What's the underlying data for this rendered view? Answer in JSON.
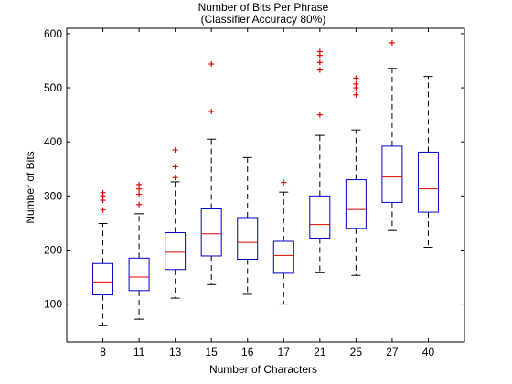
{
  "chart_data": {
    "type": "boxplot",
    "title": "Number of Bits Per Phrase",
    "subtitle": "(Classifier Accuracy 80%)",
    "xlabel": "Number of Characters",
    "ylabel": "Number of Bits",
    "ylim": [
      30,
      610
    ],
    "yticks": [
      100,
      200,
      300,
      400,
      500,
      600
    ],
    "grid": false,
    "colors": {
      "box": "#0000cc",
      "median": "#dd0000",
      "whisker": "#000000",
      "outlier": "#ee0000"
    },
    "categories": [
      "8",
      "11",
      "13",
      "15",
      "16",
      "17",
      "21",
      "25",
      "27",
      "40"
    ],
    "boxes": [
      {
        "category": "8",
        "whisker_low": 60,
        "q1": 117,
        "median": 141,
        "q3": 175,
        "whisker_high": 249,
        "outliers": [
          274,
          292,
          300,
          306
        ]
      },
      {
        "category": "11",
        "whisker_low": 72,
        "q1": 125,
        "median": 150,
        "q3": 185,
        "whisker_high": 267,
        "outliers": [
          284,
          303,
          313,
          321
        ]
      },
      {
        "category": "13",
        "whisker_low": 111,
        "q1": 164,
        "median": 196,
        "q3": 232,
        "whisker_high": 326,
        "outliers": [
          334,
          354,
          385
        ]
      },
      {
        "category": "15",
        "whisker_low": 136,
        "q1": 189,
        "median": 230,
        "q3": 276,
        "whisker_high": 405,
        "outliers": [
          456,
          544
        ]
      },
      {
        "category": "16",
        "whisker_low": 118,
        "q1": 183,
        "median": 214,
        "q3": 260,
        "whisker_high": 371,
        "outliers": []
      },
      {
        "category": "17",
        "whisker_low": 100,
        "q1": 157,
        "median": 190,
        "q3": 216,
        "whisker_high": 307,
        "outliers": [
          325
        ]
      },
      {
        "category": "21",
        "whisker_low": 158,
        "q1": 222,
        "median": 247,
        "q3": 300,
        "whisker_high": 412,
        "outliers": [
          450,
          533,
          547,
          560,
          567
        ]
      },
      {
        "category": "25",
        "whisker_low": 153,
        "q1": 240,
        "median": 275,
        "q3": 330,
        "whisker_high": 422,
        "outliers": [
          487,
          500,
          507,
          518
        ]
      },
      {
        "category": "27",
        "whisker_low": 236,
        "q1": 288,
        "median": 335,
        "q3": 392,
        "whisker_high": 536,
        "outliers": [
          583
        ]
      },
      {
        "category": "40",
        "whisker_low": 205,
        "q1": 270,
        "median": 313,
        "q3": 381,
        "whisker_high": 521,
        "outliers": []
      }
    ]
  }
}
